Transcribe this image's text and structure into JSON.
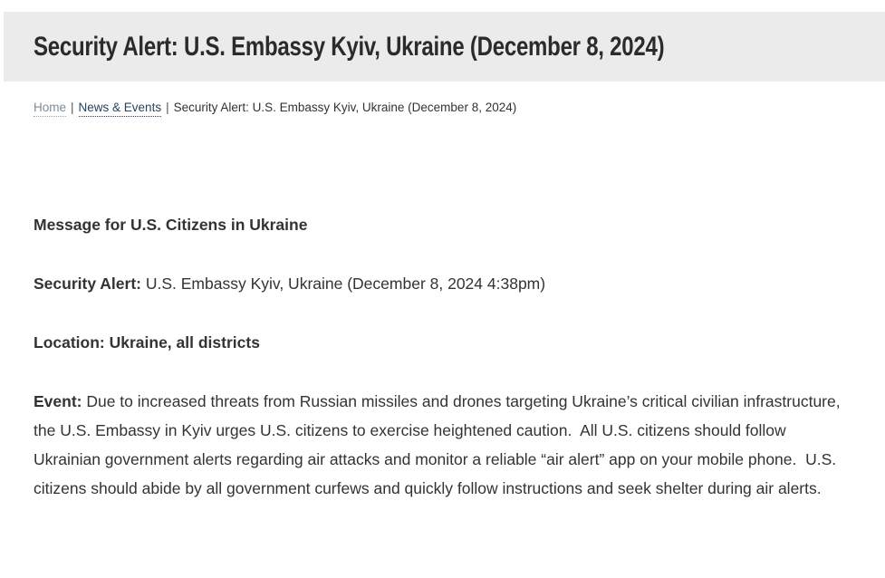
{
  "header": {
    "title": "Security Alert: U.S. Embassy Kyiv, Ukraine (December 8, 2024)"
  },
  "breadcrumb": {
    "separator": "|",
    "items": [
      {
        "label": "Home"
      },
      {
        "label": "News & Events"
      },
      {
        "label": "Security Alert: U.S. Embassy Kyiv, Ukraine (December 8, 2024)"
      }
    ]
  },
  "content": {
    "message_heading": "Message for U.S. Citizens in Ukraine",
    "security_alert": {
      "label": "Security Alert:",
      "text": " U.S. Embassy Kyiv, Ukraine (December 8, 2024 4:38pm)"
    },
    "location_line": "Location: Ukraine, all districts",
    "event": {
      "label": "Event:",
      "text": " Due to increased threats from Russian missiles and drones targeting Ukraine’s critical civilian infrastructure, the U.S. Embassy in Kyiv urges U.S. citizens to exercise heightened caution.  All U.S. citizens should follow Ukrainian government alerts regarding air attacks and monitor a reliable “air alert” app on your mobile phone.  U.S. citizens should abide by all government curfews and quickly follow instructions and seek shelter during air alerts."
    }
  },
  "colors": {
    "title_bar_bg": "#ebebeb",
    "title_text": "#2b2b2b",
    "breadcrumb_home_link": "#7d8c99",
    "breadcrumb_section_link": "#26435e",
    "body_text": "#333333"
  }
}
